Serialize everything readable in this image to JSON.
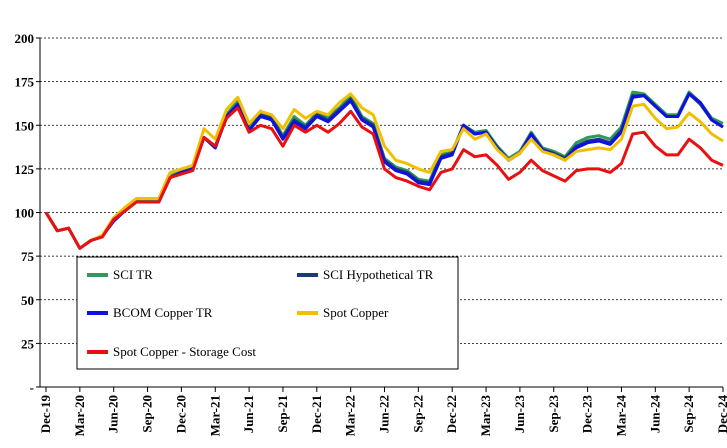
{
  "chart_data": {
    "type": "line",
    "title": "",
    "xlabel": "",
    "ylabel": "",
    "ylim": [
      0,
      200
    ],
    "yticks": [
      0,
      25,
      50,
      75,
      100,
      125,
      150,
      175,
      200
    ],
    "ytick_labels": [
      "-",
      "25",
      "50",
      "75",
      "100",
      "125",
      "150",
      "175",
      "200"
    ],
    "x_tick_labels": [
      "Dec-19",
      "Mar-20",
      "Jun-20",
      "Sep-20",
      "Dec-20",
      "Mar-21",
      "Jun-21",
      "Sep-21",
      "Dec-21",
      "Mar-22",
      "Jun-22",
      "Sep-22",
      "Dec-22",
      "Mar-23",
      "Jun-23",
      "Sep-23",
      "Dec-23",
      "Mar-24",
      "Jun-24",
      "Sep-24",
      "Dec-24"
    ],
    "grid": "horizontal dashed",
    "legend_placement": "lower-left inside",
    "x": [
      "Dec-19",
      "Jan-20",
      "Feb-20",
      "Mar-20",
      "Apr-20",
      "May-20",
      "Jun-20",
      "Jul-20",
      "Aug-20",
      "Sep-20",
      "Oct-20",
      "Nov-20",
      "Dec-20",
      "Jan-21",
      "Feb-21",
      "Mar-21",
      "Apr-21",
      "May-21",
      "Jun-21",
      "Jul-21",
      "Aug-21",
      "Sep-21",
      "Oct-21",
      "Nov-21",
      "Dec-21",
      "Jan-22",
      "Feb-22",
      "Mar-22",
      "Apr-22",
      "May-22",
      "Jun-22",
      "Jul-22",
      "Aug-22",
      "Sep-22",
      "Oct-22",
      "Nov-22",
      "Dec-22",
      "Jan-23",
      "Feb-23",
      "Mar-23",
      "Apr-23",
      "May-23",
      "Jun-23",
      "Jul-23",
      "Aug-23",
      "Sep-23",
      "Oct-23",
      "Nov-23",
      "Dec-23",
      "Jan-24",
      "Feb-24",
      "Mar-24",
      "Apr-24",
      "May-24",
      "Jun-24",
      "Jul-24",
      "Aug-24",
      "Sep-24",
      "Oct-24",
      "Nov-24",
      "Dec-24"
    ],
    "series": [
      {
        "name": "SCI TR",
        "color": "#2e9a5a",
        "values": [
          100,
          89.5,
          91,
          79.5,
          84,
          86.5,
          96,
          102,
          107,
          107,
          107,
          121,
          123.5,
          126,
          143,
          138,
          156,
          164,
          148,
          158,
          155,
          144,
          155,
          150,
          157,
          155,
          160,
          167,
          155,
          151,
          131,
          126,
          124,
          119,
          118,
          133,
          135,
          150,
          146,
          147,
          138,
          131,
          135,
          146,
          137,
          135,
          132,
          140,
          143,
          144,
          142,
          149,
          169,
          168,
          162,
          156,
          156,
          169,
          163,
          154,
          151
        ]
      },
      {
        "name": "SCI Hypothetical TR",
        "color": "#1a3a7a",
        "values": [
          100,
          89.5,
          91,
          79.5,
          84,
          86.5,
          96,
          101,
          106,
          106,
          106,
          120,
          123,
          125,
          143,
          137,
          155,
          162,
          147,
          156,
          154,
          143,
          153,
          149,
          156,
          153,
          159,
          165,
          154,
          150,
          130,
          125,
          123,
          118,
          117,
          132,
          134,
          150,
          145,
          146,
          137,
          130,
          134,
          145,
          136,
          134,
          131,
          138,
          141,
          142,
          140,
          147,
          167,
          167,
          161,
          155,
          155,
          168,
          162,
          153,
          149
        ]
      },
      {
        "name": "BCOM Copper TR",
        "color": "#1010e0",
        "values": [
          100,
          89.5,
          91,
          79.5,
          84,
          86.5,
          95,
          101,
          106,
          106,
          106,
          120,
          123,
          125,
          143,
          137,
          155,
          162,
          147,
          155,
          153,
          142,
          152,
          148,
          155,
          152,
          158,
          164,
          153,
          149,
          129,
          124,
          122,
          117,
          116,
          131,
          133,
          150,
          145,
          146,
          137,
          130,
          134,
          145,
          136,
          133,
          130,
          137,
          140,
          141,
          139,
          146,
          166,
          167,
          161,
          155,
          155,
          168,
          163,
          153,
          149
        ]
      },
      {
        "name": "Spot Copper",
        "color": "#f0c000",
        "values": [
          100,
          89.5,
          91,
          79.5,
          84,
          87,
          97,
          103,
          108,
          108,
          108,
          123,
          125,
          127,
          148,
          142,
          159,
          166,
          151,
          158,
          156,
          148,
          159,
          154,
          158,
          156,
          163,
          168,
          160,
          156,
          138,
          130,
          128,
          125,
          123,
          135,
          136,
          148,
          142,
          145,
          136,
          130,
          134,
          142,
          135,
          133,
          130,
          135,
          136,
          137,
          136,
          142,
          161,
          162,
          154,
          148,
          149,
          157,
          152,
          145,
          141
        ]
      },
      {
        "name": "Spot Copper - Storage Cost",
        "color": "#e81010",
        "values": [
          100,
          89.5,
          91,
          79.5,
          84,
          86,
          96,
          101,
          106,
          106,
          106,
          120,
          122,
          124,
          143,
          138,
          154,
          160,
          146,
          150,
          148,
          138,
          150,
          146,
          150,
          146,
          151,
          158,
          149,
          145,
          125,
          120,
          118,
          115,
          113,
          123,
          125,
          136,
          132,
          133,
          127,
          119,
          123,
          130,
          124,
          121,
          118,
          124,
          125,
          125,
          123,
          128,
          145,
          146,
          138,
          133,
          133,
          142,
          137,
          130,
          127
        ]
      }
    ]
  }
}
